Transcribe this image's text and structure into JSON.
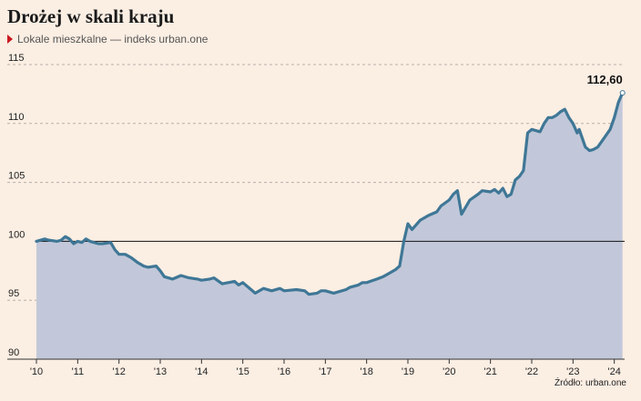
{
  "header": {
    "title": "Drożej w skali kraju",
    "subtitle": "Lokale mieszkalne — indeks urban.one"
  },
  "footer": {
    "source": "Źródło: urban.one"
  },
  "colors": {
    "background": "#fbeee3",
    "line": "#3f7796",
    "area": "#c2c8d9",
    "grid": "#b8b0a8",
    "baseline": "#111111",
    "accent": "#c8191e"
  },
  "chart_data": {
    "type": "area",
    "ylim": [
      90,
      115
    ],
    "yticks": [
      90,
      95,
      100,
      105,
      110,
      115
    ],
    "ytick_labels": [
      "90",
      "95",
      "100",
      "105",
      "110",
      "115"
    ],
    "baseline": 100,
    "xlim": [
      2010.0,
      2024.25
    ],
    "xticks": [
      2010,
      2011,
      2012,
      2013,
      2014,
      2015,
      2016,
      2017,
      2018,
      2019,
      2020,
      2021,
      2022,
      2023,
      2024
    ],
    "xtick_labels": [
      "'10",
      "'11",
      "'12",
      "'13",
      "'14",
      "'15",
      "'16",
      "'17",
      "'18",
      "'19",
      "'20",
      "'21",
      "'22",
      "'23",
      "'24"
    ],
    "grid": "horizontal dashed",
    "last_value_label": "112,60",
    "series": [
      {
        "x": [
          2010.0,
          2010.2,
          2010.3,
          2010.5,
          2010.6,
          2010.7,
          2010.8,
          2010.9,
          2011.0,
          2011.1,
          2011.2,
          2011.3,
          2011.5,
          2011.6,
          2011.8,
          2011.9,
          2012.0,
          2012.15,
          2012.3,
          2012.45,
          2012.6,
          2012.7,
          2012.9,
          2013.0,
          2013.1,
          2013.3,
          2013.5,
          2013.7,
          2013.9,
          2014.0,
          2014.2,
          2014.3,
          2014.5,
          2014.8,
          2014.9,
          2015.0,
          2015.3,
          2015.5,
          2015.7,
          2015.9,
          2016.0,
          2016.3,
          2016.5,
          2016.6,
          2016.8,
          2016.9,
          2017.0,
          2017.2,
          2017.5,
          2017.6,
          2017.8,
          2017.9,
          2018.0,
          2018.25,
          2018.4,
          2018.5,
          2018.6,
          2018.7,
          2018.8,
          2018.9,
          2019.0,
          2019.1,
          2019.3,
          2019.5,
          2019.7,
          2019.8,
          2020.0,
          2020.1,
          2020.2,
          2020.3,
          2020.5,
          2020.7,
          2020.8,
          2021.0,
          2021.1,
          2021.2,
          2021.3,
          2021.4,
          2021.5,
          2021.6,
          2021.7,
          2021.8,
          2021.9,
          2022.0,
          2022.2,
          2022.3,
          2022.4,
          2022.5,
          2022.6,
          2022.7,
          2022.8,
          2022.9,
          2023.0,
          2023.1,
          2023.15,
          2023.3,
          2023.4,
          2023.5,
          2023.6,
          2023.7,
          2023.8,
          2023.9,
          2024.0,
          2024.1,
          2024.2
        ],
        "values": [
          100.0,
          100.2,
          100.1,
          100.0,
          100.1,
          100.4,
          100.2,
          99.8,
          100.0,
          99.9,
          100.2,
          100.0,
          99.8,
          99.8,
          99.9,
          99.3,
          98.9,
          98.9,
          98.6,
          98.2,
          97.9,
          97.8,
          97.9,
          97.5,
          97.0,
          96.8,
          97.1,
          96.9,
          96.8,
          96.7,
          96.8,
          96.9,
          96.4,
          96.6,
          96.3,
          96.5,
          95.6,
          96.0,
          95.8,
          96.0,
          95.8,
          95.9,
          95.8,
          95.5,
          95.6,
          95.8,
          95.8,
          95.6,
          95.9,
          96.1,
          96.3,
          96.5,
          96.5,
          96.8,
          97.0,
          97.2,
          97.4,
          97.6,
          97.9,
          100.0,
          101.5,
          101.0,
          101.8,
          102.2,
          102.5,
          103.0,
          103.5,
          104.0,
          104.3,
          102.3,
          103.5,
          104.0,
          104.3,
          104.2,
          104.4,
          104.1,
          104.5,
          103.8,
          104.0,
          105.2,
          105.5,
          106.0,
          109.2,
          109.5,
          109.3,
          110.0,
          110.5,
          110.5,
          110.7,
          111.0,
          111.2,
          110.5,
          110.0,
          109.2,
          109.5,
          108.0,
          107.7,
          107.8,
          108.0,
          108.5,
          109.0,
          109.5,
          110.5,
          111.8,
          112.6
        ]
      }
    ]
  }
}
